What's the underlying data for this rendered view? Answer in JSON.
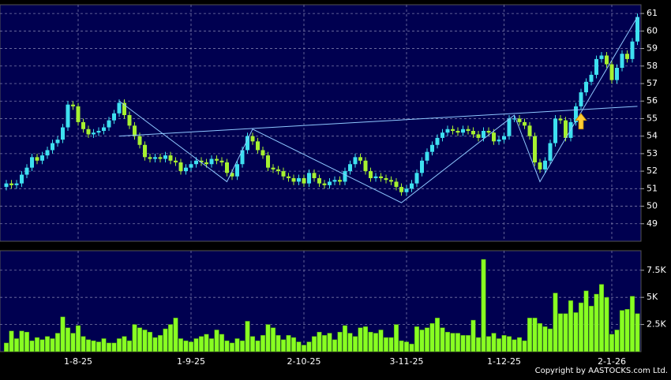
{
  "chart_data": {
    "type": "candlestick",
    "categories": [
      null,
      null,
      null,
      null,
      null,
      null,
      null,
      null,
      null,
      null,
      null,
      null,
      null,
      null,
      "1-8-25",
      null,
      null,
      null,
      null,
      null,
      null,
      null,
      null,
      null,
      null,
      null,
      null,
      null,
      null,
      null,
      null,
      null,
      null,
      null,
      null,
      null,
      "1-9-25",
      null,
      null,
      null,
      null,
      null,
      null,
      null,
      null,
      null,
      null,
      null,
      null,
      null,
      null,
      null,
      null,
      null,
      null,
      null,
      null,
      null,
      "2-10-25",
      null,
      null,
      null,
      null,
      null,
      null,
      null,
      null,
      null,
      null,
      null,
      null,
      null,
      null,
      null,
      null,
      null,
      null,
      null,
      "3-11-25",
      null,
      null,
      null,
      null,
      null,
      null,
      null,
      null,
      null,
      null,
      null,
      null,
      null,
      null,
      null,
      null,
      null,
      null,
      "1-12-25",
      null,
      null,
      null,
      null,
      null,
      null,
      null,
      null,
      null,
      null,
      null,
      null,
      null,
      null,
      null,
      null,
      null,
      null,
      null,
      null,
      "2-1-26",
      null,
      null,
      null,
      null,
      null
    ],
    "open": [
      51.1,
      51.3,
      51.2,
      51.3,
      51.8,
      52.2,
      52.8,
      52.6,
      52.9,
      53.2,
      53.6,
      53.8,
      54.5,
      55.8,
      55.7,
      54.8,
      54.4,
      54.1,
      54.2,
      54.3,
      54.5,
      54.9,
      55.3,
      55.9,
      55.2,
      54.6,
      54.0,
      53.5,
      52.8,
      52.7,
      52.8,
      52.7,
      52.9,
      52.6,
      52.5,
      52.0,
      52.2,
      52.4,
      52.6,
      52.5,
      52.4,
      52.7,
      52.6,
      52.5,
      51.9,
      51.7,
      52.4,
      53.2,
      54.0,
      53.7,
      53.2,
      52.9,
      52.2,
      52.1,
      52.0,
      51.7,
      51.6,
      51.4,
      51.6,
      51.3,
      51.9,
      51.6,
      51.3,
      51.2,
      51.4,
      51.5,
      51.4,
      52.0,
      52.4,
      52.8,
      52.6,
      52.0,
      51.6,
      51.7,
      51.6,
      51.5,
      51.4,
      51.1,
      50.8,
      51.0,
      51.3,
      51.9,
      52.6,
      53.1,
      53.5,
      53.9,
      54.2,
      54.4,
      54.3,
      54.2,
      54.4,
      54.3,
      54.1,
      53.9,
      54.3,
      54.2,
      53.7,
      53.8,
      54.0,
      55.0,
      55.0,
      54.8,
      54.6,
      54.0,
      52.5,
      52.1,
      52.6,
      53.6,
      55.0,
      54.9,
      53.9,
      54.8,
      55.7,
      56.5,
      57.1,
      57.5,
      58.4,
      58.6,
      58.1,
      57.2,
      57.9,
      58.7,
      58.4,
      59.4
    ],
    "high": [
      51.5,
      51.5,
      51.5,
      52.0,
      52.4,
      53.0,
      53.0,
      53.1,
      53.4,
      53.8,
      54.0,
      54.7,
      56.0,
      56.0,
      55.9,
      55.0,
      54.6,
      54.4,
      54.5,
      54.7,
      55.1,
      55.5,
      56.1,
      56.1,
      55.4,
      54.8,
      54.2,
      53.7,
      53.0,
      53.0,
      53.0,
      53.1,
      53.1,
      52.8,
      52.7,
      52.4,
      52.6,
      52.8,
      52.8,
      52.7,
      52.9,
      52.9,
      52.8,
      52.7,
      52.1,
      52.6,
      53.4,
      54.2,
      54.2,
      53.9,
      53.4,
      53.1,
      52.4,
      52.3,
      52.2,
      51.9,
      51.8,
      51.8,
      51.8,
      52.1,
      52.1,
      51.8,
      51.5,
      51.6,
      51.7,
      51.7,
      52.2,
      52.6,
      53.0,
      53.0,
      52.8,
      52.2,
      51.9,
      51.9,
      51.8,
      51.7,
      51.6,
      51.3,
      51.2,
      51.5,
      52.1,
      52.8,
      53.3,
      53.7,
      54.1,
      54.4,
      54.6,
      54.6,
      54.5,
      54.6,
      54.6,
      54.5,
      54.3,
      54.5,
      54.5,
      54.4,
      54.0,
      54.2,
      55.2,
      55.2,
      55.2,
      55.0,
      54.8,
      54.2,
      52.7,
      52.8,
      53.8,
      55.2,
      55.2,
      55.1,
      55.0,
      55.9,
      56.7,
      57.3,
      57.7,
      58.6,
      58.8,
      58.8,
      58.3,
      58.1,
      58.9,
      58.9,
      59.6,
      61.0
    ],
    "low": [
      50.9,
      51.0,
      51.0,
      51.1,
      51.6,
      52.0,
      52.4,
      52.4,
      52.7,
      53.0,
      53.4,
      53.6,
      54.3,
      55.5,
      54.6,
      54.2,
      53.9,
      53.9,
      54.0,
      54.1,
      54.3,
      54.7,
      55.1,
      55.0,
      54.4,
      53.8,
      53.3,
      52.6,
      52.5,
      52.5,
      52.5,
      52.5,
      52.4,
      52.3,
      51.8,
      51.8,
      52.0,
      52.2,
      52.3,
      52.2,
      52.2,
      52.4,
      52.3,
      51.7,
      51.5,
      51.5,
      52.2,
      53.0,
      53.5,
      53.0,
      52.7,
      52.0,
      51.9,
      51.8,
      51.5,
      51.4,
      51.2,
      51.2,
      51.1,
      51.1,
      51.4,
      51.1,
      51.0,
      51.0,
      51.2,
      51.2,
      51.2,
      51.8,
      52.2,
      52.4,
      51.8,
      51.4,
      51.4,
      51.4,
      51.3,
      51.2,
      50.9,
      50.6,
      50.6,
      50.8,
      51.1,
      51.7,
      52.4,
      52.9,
      53.3,
      53.7,
      54.0,
      54.1,
      54.0,
      54.0,
      54.1,
      53.9,
      53.7,
      53.7,
      54.0,
      53.5,
      53.5,
      53.6,
      53.8,
      54.8,
      54.6,
      54.4,
      53.8,
      52.3,
      51.9,
      51.9,
      52.4,
      53.4,
      54.7,
      53.7,
      53.7,
      54.6,
      55.5,
      56.3,
      56.9,
      57.3,
      58.2,
      57.9,
      57.0,
      57.0,
      57.7,
      58.2,
      58.2,
      59.2
    ],
    "close": [
      51.3,
      51.2,
      51.3,
      51.8,
      52.2,
      52.8,
      52.6,
      52.9,
      53.2,
      53.6,
      53.8,
      54.5,
      55.8,
      55.7,
      54.8,
      54.4,
      54.1,
      54.2,
      54.3,
      54.5,
      54.9,
      55.3,
      55.9,
      55.2,
      54.6,
      54.0,
      53.5,
      52.8,
      52.7,
      52.8,
      52.7,
      52.9,
      52.6,
      52.5,
      52.0,
      52.2,
      52.4,
      52.6,
      52.5,
      52.4,
      52.7,
      52.6,
      52.5,
      51.9,
      51.7,
      52.4,
      53.2,
      54.0,
      53.7,
      53.2,
      52.9,
      52.2,
      52.1,
      52.0,
      51.7,
      51.6,
      51.4,
      51.6,
      51.3,
      51.9,
      51.6,
      51.3,
      51.2,
      51.4,
      51.5,
      51.4,
      52.0,
      52.4,
      52.8,
      52.6,
      52.0,
      51.6,
      51.7,
      51.6,
      51.5,
      51.4,
      51.1,
      50.8,
      51.0,
      51.3,
      51.9,
      52.6,
      53.1,
      53.5,
      53.9,
      54.2,
      54.4,
      54.3,
      54.2,
      54.4,
      54.3,
      54.1,
      53.9,
      54.3,
      54.2,
      53.7,
      53.8,
      54.0,
      55.0,
      55.0,
      54.8,
      54.6,
      54.0,
      52.5,
      52.1,
      52.6,
      53.6,
      55.0,
      54.9,
      53.9,
      54.8,
      55.7,
      56.5,
      57.1,
      57.5,
      58.4,
      58.6,
      58.1,
      57.2,
      57.9,
      58.7,
      58.4,
      59.4,
      60.8
    ],
    "up_color": "#3ee0f0",
    "down_color": "#a6f030",
    "ylim": [
      48,
      61.5
    ],
    "yticks": [
      49,
      50,
      51,
      52,
      53,
      54,
      55,
      56,
      57,
      58,
      59,
      60,
      61
    ],
    "grid": true,
    "trendline_color": "#8fc8ff",
    "trendlines": [
      [
        [
          22,
          54.0
        ],
        [
          123,
          55.7
        ]
      ],
      [
        [
          22,
          56.0
        ],
        [
          43,
          51.4
        ],
        [
          48,
          54.4
        ],
        [
          77,
          50.2
        ],
        [
          99,
          55.2
        ],
        [
          104,
          51.4
        ],
        [
          123,
          60.8
        ]
      ]
    ],
    "arrow": {
      "index": 112,
      "price": 55.3,
      "color": "#ffcc33"
    },
    "volume": {
      "type": "bar",
      "color": "#88ff22",
      "values": [
        800,
        1900,
        1200,
        1900,
        1800,
        1000,
        1300,
        1100,
        1400,
        1200,
        1700,
        3200,
        2200,
        1700,
        2400,
        1400,
        1100,
        1000,
        900,
        1200,
        800,
        800,
        1200,
        1400,
        1000,
        2500,
        2200,
        2000,
        1800,
        1300,
        1500,
        2100,
        2500,
        3100,
        1200,
        1000,
        900,
        1200,
        1400,
        1600,
        1200,
        2000,
        1600,
        1000,
        800,
        1200,
        1000,
        2800,
        1400,
        1000,
        1500,
        2500,
        2200,
        1500,
        1100,
        1500,
        1300,
        900,
        600,
        900,
        1400,
        1800,
        1500,
        1700,
        1100,
        1800,
        2400,
        1700,
        1400,
        2200,
        2300,
        1800,
        1700,
        2000,
        1300,
        1300,
        2500,
        1000,
        900,
        700,
        2300,
        2000,
        2200,
        2600,
        3100,
        2200,
        1800,
        1700,
        1700,
        1500,
        1500,
        2900,
        1300,
        8500,
        1400,
        1700,
        1200,
        1500,
        1400,
        1100,
        1300,
        1000,
        3100,
        3100,
        2600,
        2300,
        2100,
        5400,
        3500,
        3500,
        4700,
        3600,
        4500,
        5600,
        4200,
        5300,
        6200,
        5000,
        1600,
        2000,
        3800,
        3900,
        5100,
        3500
      ],
      "ylim": [
        0,
        9300
      ],
      "yticks": [
        {
          "value": 2500,
          "label": "2.5K"
        },
        {
          "value": 5000,
          "label": "5K"
        },
        {
          "value": 7500,
          "label": "7.5K"
        }
      ]
    },
    "copyright": "Copyright by AASTOCKS.com Ltd."
  }
}
